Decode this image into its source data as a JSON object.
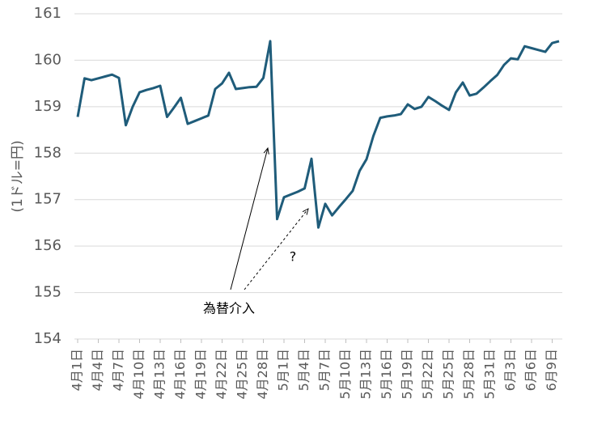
{
  "chart_data": {
    "type": "line",
    "y_axis_label": "(1ドル=円)",
    "categories": [
      "4月1日",
      null,
      null,
      "4月4日",
      null,
      null,
      "4月7日",
      null,
      null,
      "4月10日",
      null,
      null,
      "4月13日",
      null,
      null,
      "4月16日",
      null,
      null,
      "4月19日",
      null,
      null,
      "4月22日",
      null,
      null,
      "4月25日",
      null,
      null,
      "4月28日",
      null,
      null,
      "5月1日",
      null,
      null,
      "5月4日",
      null,
      null,
      "5月7日",
      null,
      null,
      "5月10日",
      null,
      null,
      "5月13日",
      null,
      null,
      "5月16日",
      null,
      null,
      "5月19日",
      null,
      null,
      "5月22日",
      null,
      null,
      "5月25日",
      null,
      null,
      "5月28日",
      null,
      null,
      "5月31日",
      null,
      null,
      "6月3日",
      null,
      null,
      "6月6日",
      null,
      null,
      "6月9日",
      null
    ],
    "values": [
      158.78,
      159.61,
      159.57,
      159.61,
      159.65,
      159.69,
      159.62,
      158.6,
      159.0,
      159.31,
      159.36,
      159.4,
      159.45,
      158.78,
      158.98,
      159.19,
      158.63,
      158.69,
      158.75,
      158.81,
      159.38,
      159.5,
      159.73,
      159.38,
      159.4,
      159.42,
      159.43,
      159.62,
      160.41,
      156.58,
      157.05,
      157.11,
      157.17,
      157.24,
      157.88,
      156.4,
      156.91,
      156.66,
      156.84,
      157.01,
      157.19,
      157.62,
      157.87,
      158.37,
      158.76,
      158.79,
      158.81,
      158.84,
      159.05,
      158.95,
      159.0,
      159.21,
      159.12,
      159.02,
      158.93,
      159.31,
      159.52,
      159.24,
      159.28,
      159.41,
      159.55,
      159.68,
      159.9,
      160.04,
      160.02,
      160.3,
      160.26,
      160.22,
      160.18,
      160.37,
      160.41
    ],
    "color": "#1f5c7a",
    "ylim": [
      154,
      161
    ],
    "yticks": [
      154,
      155,
      156,
      157,
      158,
      159,
      160,
      161
    ],
    "grid": true,
    "annotations": [
      {
        "text": "為替介入"
      },
      {
        "text": "?"
      }
    ]
  }
}
